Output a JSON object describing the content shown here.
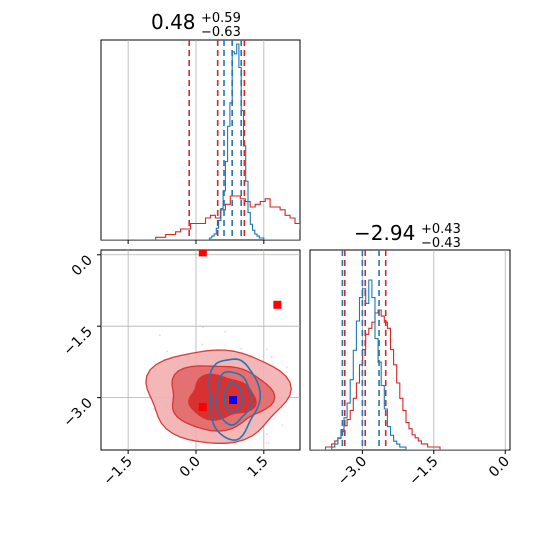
{
  "chart_data": {
    "type": "corner",
    "grid": true,
    "axes_ranges": {
      "x1": [
        -2.1,
        2.3
      ],
      "x2": [
        -4.1,
        0.1
      ]
    },
    "tick_labels": {
      "x1": [
        "-1.5",
        "0.0",
        "1.5"
      ],
      "x2": [
        "-3.0",
        "-1.5",
        "0.0"
      ]
    },
    "tick_values": {
      "x1": [
        -1.5,
        0.0,
        1.5
      ],
      "x2": [
        -3.0,
        -1.5,
        0.0
      ]
    },
    "titles": [
      {
        "value": "0.48",
        "plus": "+0.59",
        "minus": "−0.63"
      },
      {
        "value": "−2.94",
        "plus": "+0.43",
        "minus": "−0.43"
      }
    ],
    "series": [
      {
        "color": "#d62728",
        "quantiles_x1": [
          -0.15,
          0.48,
          1.07
        ],
        "quantiles_x2": [
          -3.37,
          -2.94,
          -2.51
        ],
        "hist_x1": {
          "start": -2.1,
          "step": 0.11,
          "counts": [
            0,
            0,
            0,
            0,
            0,
            0,
            0,
            0,
            0,
            0,
            0,
            1,
            1,
            2,
            2,
            3,
            4,
            4,
            6,
            6,
            6,
            8,
            9,
            8,
            11,
            13,
            16,
            16,
            15,
            14,
            12,
            13,
            14,
            15,
            12,
            12,
            11,
            9,
            8,
            6,
            4,
            3,
            2,
            2,
            1,
            1,
            0,
            0,
            0,
            0,
            0,
            0,
            0
          ]
        },
        "hist_x2": {
          "start": -4.1,
          "step": 0.065,
          "counts": [
            0,
            0,
            0,
            0,
            0,
            1,
            1,
            2,
            3,
            4,
            6,
            8,
            10,
            13,
            17,
            22,
            28,
            33,
            38,
            40,
            42,
            45,
            46,
            44,
            42,
            40,
            33,
            28,
            22,
            17,
            13,
            9,
            7,
            5,
            4,
            3,
            2,
            2,
            1,
            1,
            1,
            1,
            0,
            0,
            0,
            0,
            0,
            0,
            0,
            0,
            0,
            0,
            0,
            0,
            0,
            0,
            0,
            0,
            0,
            0,
            0,
            0,
            0,
            0
          ]
        },
        "markers": [
          {
            "x1": 0.15,
            "x2": -3.2
          },
          {
            "x1": 1.8,
            "x2": -1.05
          },
          {
            "x1": 0.15,
            "x2": 0.05
          }
        ]
      },
      {
        "color": "#1f77b4",
        "quantiles_x1": [
          0.62,
          0.8,
          1.0
        ],
        "quantiles_x2": [
          -3.42,
          -3.0,
          -2.65
        ],
        "hist_x1": {
          "start": -2.1,
          "step": 0.05,
          "counts": [
            0,
            0,
            0,
            0,
            0,
            0,
            0,
            0,
            0,
            0,
            0,
            0,
            0,
            0,
            0,
            0,
            0,
            0,
            0,
            0,
            0,
            0,
            0,
            0,
            0,
            0,
            0,
            0,
            0,
            0,
            0,
            0,
            0,
            0,
            0,
            0,
            0,
            0,
            0,
            0,
            0,
            0,
            0,
            0,
            0,
            0,
            0,
            0,
            1,
            2,
            3,
            6,
            10,
            16,
            25,
            40,
            58,
            70,
            96,
            95,
            100,
            88,
            66,
            48,
            30,
            14,
            8,
            5,
            3,
            2,
            1,
            1,
            0,
            0,
            0,
            0,
            0,
            0,
            0,
            0,
            0,
            0,
            0,
            0,
            0,
            0,
            0,
            0
          ]
        },
        "hist_x2": {
          "start": -4.1,
          "step": 0.065,
          "counts": [
            0,
            0,
            0,
            0,
            0,
            0,
            0,
            1,
            2,
            4,
            7,
            11,
            16,
            24,
            34,
            44,
            52,
            55,
            50,
            58,
            52,
            38,
            30,
            22,
            14,
            8,
            5,
            3,
            2,
            1,
            1,
            0,
            0,
            0,
            0,
            0,
            0,
            0,
            0,
            0,
            0,
            0,
            0,
            0,
            0,
            0,
            0,
            0,
            0,
            0,
            0,
            0,
            0,
            0,
            0,
            0,
            0,
            0,
            0,
            0,
            0,
            0,
            0,
            0
          ]
        },
        "markers": [
          {
            "x1": 0.82,
            "x2": -3.05
          }
        ]
      }
    ]
  }
}
